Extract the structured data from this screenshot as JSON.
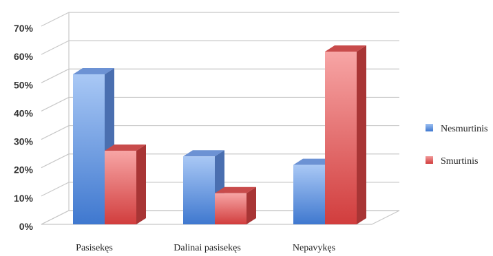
{
  "chart_data": {
    "type": "bar",
    "categories": [
      "Pasisekęs",
      "Dalinai pasisekęs",
      "Nepavykęs"
    ],
    "series": [
      {
        "name": "Nesmurtinis",
        "values": [
          53,
          24,
          21
        ],
        "color": "#5b8fd9"
      },
      {
        "name": "Smurtinis",
        "values": [
          26,
          11,
          61
        ],
        "color": "#e05a5a"
      }
    ],
    "y_ticks": [
      "0%",
      "10%",
      "20%",
      "30%",
      "40%",
      "50%",
      "60%",
      "70%"
    ],
    "ylim": [
      0,
      70
    ],
    "grid": true,
    "legend_position": "right",
    "style": "3d"
  }
}
